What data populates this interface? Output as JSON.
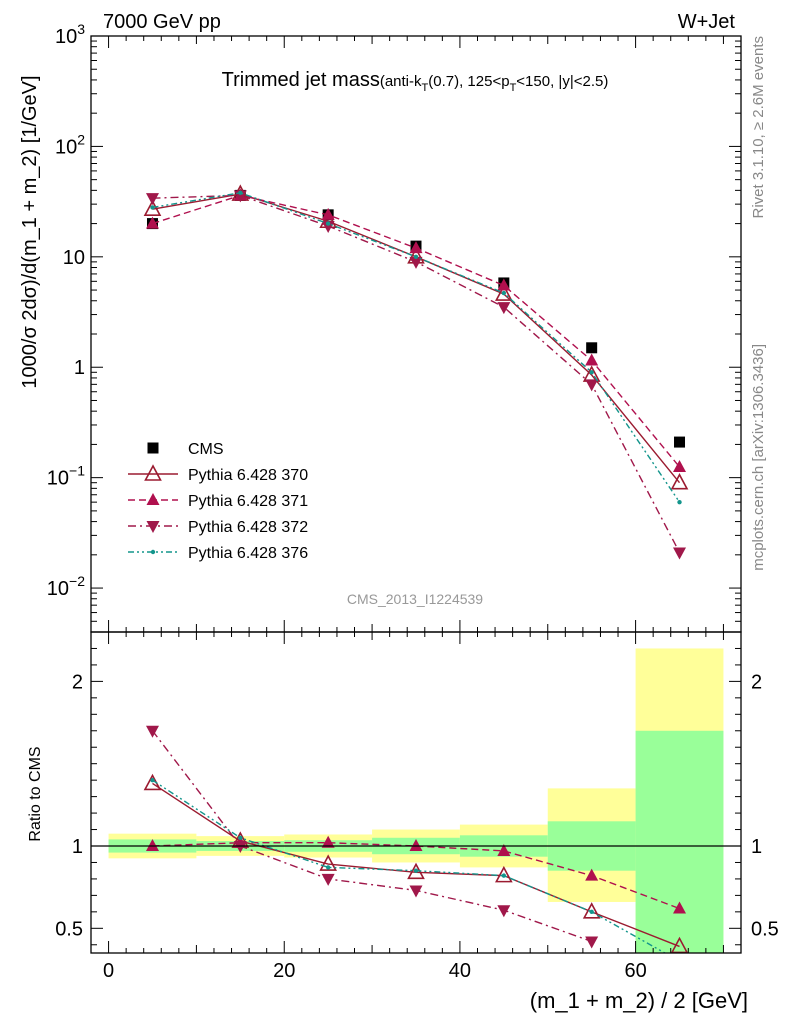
{
  "header": {
    "left": "7000 GeV pp",
    "right": "W+Jet",
    "side_top": "Rivet 3.1.10, ≥ 2.6M events",
    "side_bottom": "mcplots.cern.ch [arXiv:1306.3436]",
    "analysis_id": "CMS_2013_I1224539"
  },
  "chart_data": [
    {
      "type": "line",
      "panel": "main",
      "title_main": "Trimmed jet mass",
      "title_sub": "(anti-k_T(0.7), 125<p_T<150, |y|<2.5)",
      "ylabel": "1000/σ 2dσ)/d(m_1 + m_2) [1/GeV]",
      "yscale": "log",
      "ylim": [
        0.004,
        1000
      ],
      "xlim": [
        -2,
        72
      ],
      "y_ticks": [
        {
          "value": 0.01,
          "base": "10",
          "exp": "−2"
        },
        {
          "value": 0.1,
          "base": "10",
          "exp": "−1"
        },
        {
          "value": 1,
          "base": "1",
          "exp": ""
        },
        {
          "value": 10,
          "base": "10",
          "exp": ""
        },
        {
          "value": 100,
          "base": "10",
          "exp": "2"
        },
        {
          "value": 1000,
          "base": "10",
          "exp": "3"
        }
      ],
      "legend_position": "lower-left",
      "x": [
        5,
        15,
        25,
        35,
        45,
        55,
        65
      ],
      "series": [
        {
          "name": "CMS",
          "marker": "square",
          "color": "#000000",
          "line": "none",
          "values": [
            20,
            36,
            24,
            12.5,
            5.8,
            1.5,
            0.21
          ]
        },
        {
          "name": "Pythia 6.428 370",
          "marker": "triangle-up-open",
          "color": "#9b1b30",
          "line": "solid",
          "values": [
            27,
            37,
            21,
            10,
            4.6,
            0.85,
            0.09
          ]
        },
        {
          "name": "Pythia 6.428 371",
          "marker": "triangle-up",
          "color": "#b0104e",
          "line": "dashed",
          "values": [
            20,
            36,
            24,
            12,
            5.5,
            1.15,
            0.125
          ]
        },
        {
          "name": "Pythia 6.428 372",
          "marker": "triangle-down",
          "color": "#a0184a",
          "line": "dashdot",
          "values": [
            34,
            36,
            19,
            9,
            3.5,
            0.7,
            0.021
          ]
        },
        {
          "name": "Pythia 6.428 376",
          "marker": "dot",
          "color": "#13958c",
          "line": "dashdotdot",
          "values": [
            28,
            38,
            20,
            10,
            4.7,
            0.9,
            0.06
          ]
        }
      ]
    },
    {
      "type": "line",
      "panel": "ratio",
      "ylabel": "Ratio to CMS",
      "xlabel": "(m_1 + m_2) / 2 [GeV]",
      "ylim": [
        0.35,
        2.3
      ],
      "xlim": [
        -2,
        72
      ],
      "x_ticks": [
        0,
        20,
        40,
        60
      ],
      "y_ticks": [
        0.5,
        1,
        2
      ],
      "bands": [
        {
          "x0": 0,
          "x1": 10,
          "inner": [
            0.96,
            1.04
          ],
          "outer": [
            0.925,
            1.075
          ]
        },
        {
          "x0": 10,
          "x1": 20,
          "inner": [
            0.97,
            1.03
          ],
          "outer": [
            0.94,
            1.06
          ]
        },
        {
          "x0": 20,
          "x1": 30,
          "inner": [
            0.965,
            1.035
          ],
          "outer": [
            0.93,
            1.07
          ]
        },
        {
          "x0": 30,
          "x1": 40,
          "inner": [
            0.95,
            1.05
          ],
          "outer": [
            0.9,
            1.1
          ]
        },
        {
          "x0": 40,
          "x1": 50,
          "inner": [
            0.935,
            1.065
          ],
          "outer": [
            0.87,
            1.13
          ]
        },
        {
          "x0": 50,
          "x1": 60,
          "inner": [
            0.85,
            1.15
          ],
          "outer": [
            0.66,
            1.35
          ]
        },
        {
          "x0": 60,
          "x1": 70,
          "inner": [
            0.3,
            1.7
          ],
          "outer": [
            0.3,
            2.2
          ]
        }
      ],
      "x": [
        5,
        15,
        25,
        35,
        45,
        55,
        65
      ],
      "series": [
        {
          "name": "CMS",
          "marker": "none",
          "color": "#000000",
          "line": "none",
          "values": [
            1,
            1,
            1,
            1,
            1,
            1,
            1
          ]
        },
        {
          "name": "Pythia 6.428 370",
          "marker": "triangle-up-open",
          "color": "#9b1b30",
          "line": "solid",
          "values": [
            1.38,
            1.03,
            0.89,
            0.84,
            0.82,
            0.6,
            0.39
          ]
        },
        {
          "name": "Pythia 6.428 371",
          "marker": "triangle-up",
          "color": "#b0104e",
          "line": "dashed",
          "values": [
            1.0,
            1.02,
            1.02,
            1.0,
            0.97,
            0.82,
            0.62
          ]
        },
        {
          "name": "Pythia 6.428 372",
          "marker": "triangle-down",
          "color": "#a0184a",
          "line": "dashdot",
          "values": [
            1.7,
            1.0,
            0.8,
            0.73,
            0.61,
            0.42,
            null
          ]
        },
        {
          "name": "Pythia 6.428 376",
          "marker": "dot",
          "color": "#13958c",
          "line": "dashdotdot",
          "values": [
            1.4,
            1.05,
            0.87,
            0.85,
            0.82,
            0.6,
            0.3
          ]
        }
      ]
    }
  ]
}
